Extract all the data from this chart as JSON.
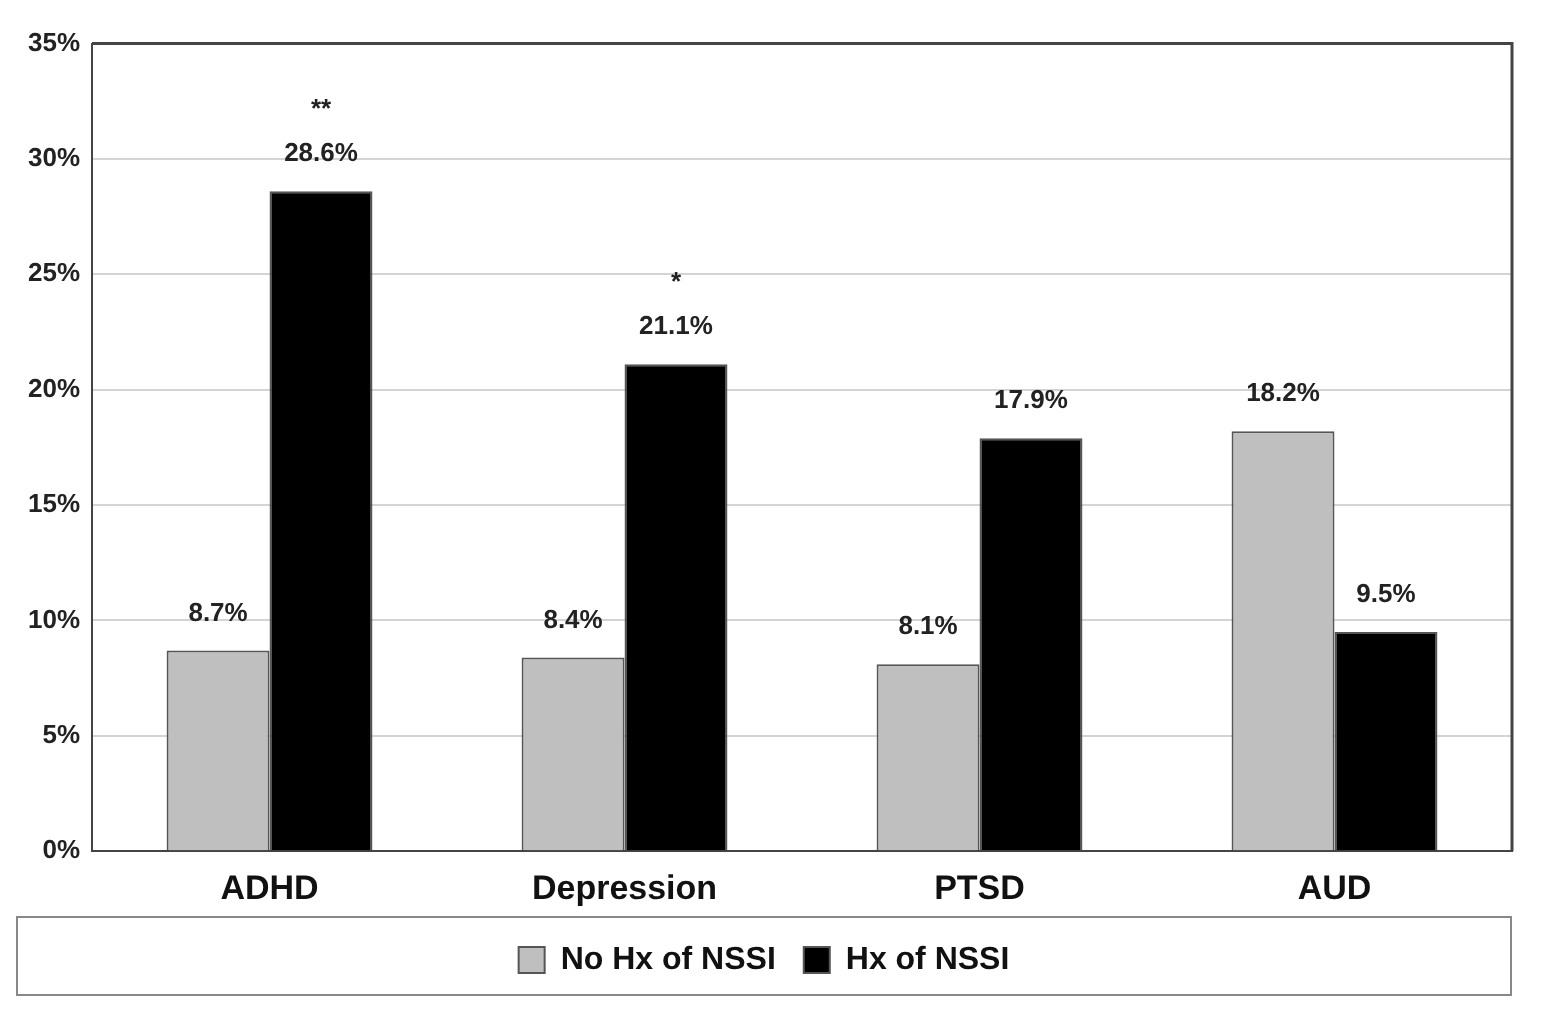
{
  "chart_data": {
    "type": "bar",
    "categories": [
      "ADHD",
      "Depression",
      "PTSD",
      "AUD"
    ],
    "series": [
      {
        "name": "No Hx of NSSI",
        "color": "#bfbfbf",
        "values": [
          8.7,
          8.4,
          8.1,
          18.2
        ],
        "value_labels": [
          "8.7%",
          "8.4%",
          "8.1%",
          "18.2%"
        ]
      },
      {
        "name": "Hx of NSSI",
        "color": "#000000",
        "values": [
          28.6,
          21.1,
          17.9,
          9.5
        ],
        "value_labels": [
          "28.6%",
          "21.1%",
          "17.9%",
          "9.5%"
        ]
      }
    ],
    "ylim": [
      0,
      35
    ],
    "yticks": [
      {
        "value": 0,
        "label": "0%"
      },
      {
        "value": 5,
        "label": "5%"
      },
      {
        "value": 10,
        "label": "10%"
      },
      {
        "value": 15,
        "label": "15%"
      },
      {
        "value": 20,
        "label": "20%"
      },
      {
        "value": 25,
        "label": "25%"
      },
      {
        "value": 30,
        "label": "30%"
      },
      {
        "value": 35,
        "label": "35%"
      }
    ],
    "annotations": [
      "**",
      "*"
    ],
    "grid": "y",
    "legend": "bottom"
  }
}
